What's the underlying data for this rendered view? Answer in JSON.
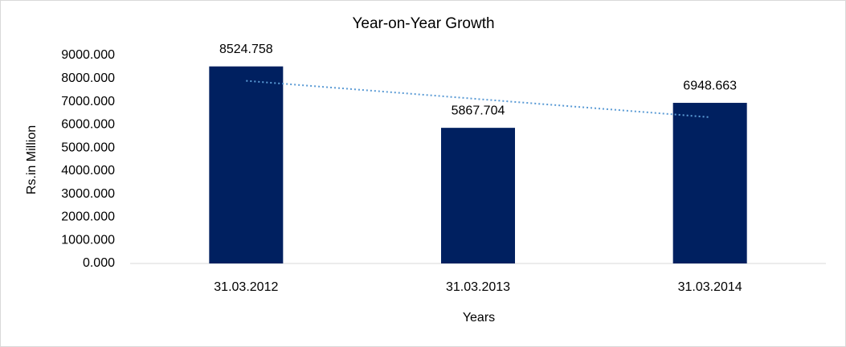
{
  "chart_data": {
    "type": "bar",
    "title": "Year-on-Year Growth",
    "x_label": "Years",
    "y_label": "Rs.in Million",
    "categories": [
      "31.03.2012",
      "31.03.2013",
      "31.03.2014"
    ],
    "values": [
      8524.758,
      5867.704,
      6948.663
    ],
    "color": "#002060",
    "ylim": [
      0,
      9000
    ],
    "yticks": [
      {
        "value": 0,
        "label": "0.000"
      },
      {
        "value": 1000,
        "label": "1000.000"
      },
      {
        "value": 2000,
        "label": "2000.000"
      },
      {
        "value": 3000,
        "label": "3000.000"
      },
      {
        "value": 4000,
        "label": "4000.000"
      },
      {
        "value": 5000,
        "label": "5000.000"
      },
      {
        "value": 6000,
        "label": "6000.000"
      },
      {
        "value": 7000,
        "label": "7000.000"
      },
      {
        "value": 8000,
        "label": "8000.000"
      },
      {
        "value": 9000,
        "label": "9000.000"
      }
    ],
    "grid": false,
    "trendline": {
      "type": "linear",
      "color": "#5b9bd5",
      "style": "dotted"
    }
  }
}
